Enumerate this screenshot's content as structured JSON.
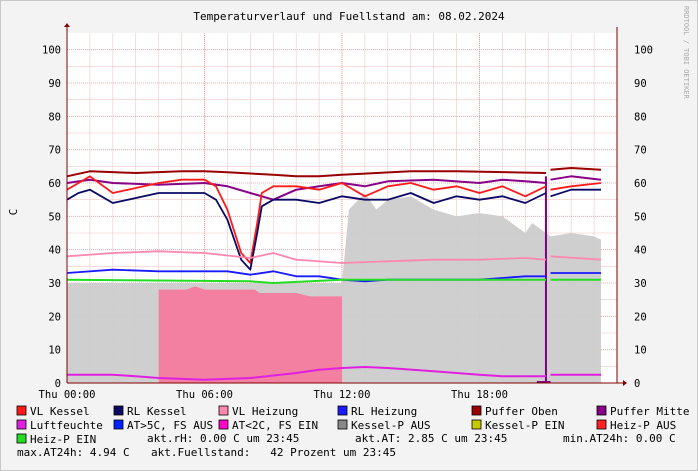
{
  "watermark": "RRDTOOL / TOBI OETIKER",
  "chart_data": {
    "type": "line",
    "title": "Temperaturverlauf und Fuellstand am: 08.02.2024",
    "ylabel": "C",
    "ylim": [
      0,
      105
    ],
    "yticks": [
      "0",
      "10",
      "20",
      "30",
      "40",
      "50",
      "60",
      "70",
      "80",
      "90",
      "100"
    ],
    "xlim": [
      0,
      24
    ],
    "xticks": [
      {
        "label": "Thu 00:00",
        "x": 0
      },
      {
        "label": "Thu 06:00",
        "x": 6
      },
      {
        "label": "Thu 12:00",
        "x": 12
      },
      {
        "label": "Thu 18:00",
        "x": 18
      }
    ],
    "grid": true,
    "colors": {
      "VL Kessel": "#ff1a1a",
      "RL Kessel": "#0a0a66",
      "VL Heizung": "#ff88b0",
      "RL Heizung": "#1a1aff",
      "Puffer Oben": "#990000",
      "Puffer Mitte": "#880088",
      "Luftfeuchte": "#e020e0",
      "AT>5C, FS AUS": "#0022ff",
      "AT<2C, FS EIN": "#ff00c8",
      "Kessel-P AUS": "#888888",
      "Kessel-P EIN": "#c8c800",
      "Heiz-P AUS": "#ff2222",
      "Heiz-P EIN": "#22dd22",
      "area_gray": "#cccccc",
      "area_pink": "#f47a9e",
      "gap_marker": "#800080"
    },
    "series": [
      {
        "name": "Puffer Oben",
        "x": [
          0,
          1,
          3,
          5,
          6,
          7,
          9,
          10,
          11,
          12,
          15,
          17,
          20.9,
          21.1,
          22,
          23.3
        ],
        "values": [
          62,
          63.5,
          63,
          63.5,
          63.5,
          63.2,
          62.5,
          62,
          62,
          62.5,
          63.5,
          63.5,
          63,
          64,
          64.5,
          64
        ]
      },
      {
        "name": "Puffer Mitte",
        "x": [
          0,
          1,
          2,
          4,
          6,
          7,
          8,
          9,
          10,
          11,
          12,
          13,
          14,
          16,
          18,
          19,
          20,
          20.9,
          21.1,
          22,
          23.3
        ],
        "values": [
          60,
          61,
          60,
          59.5,
          60,
          59,
          57,
          55,
          58,
          59,
          60,
          59,
          60.5,
          61,
          60,
          61,
          60.5,
          60,
          61,
          62,
          61
        ]
      },
      {
        "name": "VL Kessel",
        "x": [
          0,
          0.5,
          1,
          2,
          4,
          5,
          6,
          6.5,
          7,
          7.6,
          8,
          8.3,
          8.5,
          9,
          10,
          11,
          12,
          13,
          14,
          15,
          16,
          17,
          18,
          19,
          20,
          20.9,
          21.1,
          22,
          23.3
        ],
        "values": [
          58,
          60,
          62,
          57,
          60,
          61,
          61,
          59,
          52,
          39,
          36,
          48,
          57,
          59,
          59,
          58,
          60,
          56,
          59,
          60,
          58,
          59,
          57,
          59,
          56,
          59,
          58,
          59,
          60
        ]
      },
      {
        "name": "RL Kessel",
        "x": [
          0,
          0.5,
          1,
          2,
          4,
          5,
          6,
          6.5,
          7,
          7.6,
          8,
          8.3,
          8.5,
          9,
          10,
          11,
          12,
          13,
          14,
          15,
          16,
          17,
          18,
          19,
          20,
          20.9,
          21.1,
          22,
          23.3
        ],
        "values": [
          55,
          57,
          58,
          54,
          57,
          57,
          57,
          55,
          49,
          37,
          34,
          45,
          53,
          55,
          55,
          54,
          56,
          55,
          55,
          57,
          54,
          56,
          55,
          56,
          54,
          57,
          56,
          58,
          58
        ]
      },
      {
        "name": "VL Heizung",
        "x": [
          0,
          2,
          4,
          6,
          8,
          9,
          10,
          12,
          14,
          16,
          18,
          20,
          20.9,
          21.1,
          23.3
        ],
        "values": [
          38,
          39,
          39.5,
          39,
          37.5,
          39,
          37,
          36,
          36.5,
          37,
          37,
          37.5,
          37,
          38,
          37
        ]
      },
      {
        "name": "RL Heizung",
        "x": [
          0,
          2,
          4,
          6,
          7,
          8,
          9,
          10,
          11,
          12,
          13,
          14,
          16,
          18,
          20,
          20.9,
          21.1,
          23.3
        ],
        "values": [
          33,
          34,
          33.5,
          33.5,
          33.5,
          32.5,
          33.5,
          32,
          32,
          31,
          30.5,
          31,
          31,
          31,
          32,
          32,
          33,
          33
        ]
      },
      {
        "name": "Heiz-P EIN",
        "x": [
          0,
          8,
          9,
          12,
          16,
          20,
          20.9,
          21.1,
          23.3
        ],
        "values": [
          31,
          30.5,
          30,
          31,
          31,
          31,
          31,
          31,
          31
        ]
      },
      {
        "name": "Luftfeuchte",
        "x": [
          0,
          2,
          3,
          4,
          6,
          8,
          10,
          11,
          12,
          13,
          14,
          16,
          18,
          19,
          20,
          20.9,
          21.1,
          23.3
        ],
        "values": [
          2.5,
          2.5,
          2,
          1.5,
          1,
          1.5,
          3,
          4,
          4.5,
          4.8,
          4.5,
          3.5,
          2.5,
          2,
          2,
          2,
          2.5,
          2.5
        ]
      }
    ],
    "areas": [
      {
        "name": "Kessel-P AUS",
        "color": "area_gray",
        "x": [
          0,
          0.4,
          0.5,
          1,
          1.1,
          3.7,
          3.8,
          4.5,
          5.5,
          6,
          6.2,
          8.2,
          12,
          12.3,
          13,
          13.5,
          14,
          15,
          16,
          17,
          18,
          19,
          20,
          20.3,
          20.9,
          21.1,
          22,
          23,
          23.3
        ],
        "values": [
          30,
          30,
          30,
          30,
          30,
          30,
          30,
          30,
          30,
          30,
          30,
          30,
          30,
          52,
          57,
          52,
          55,
          56,
          52,
          50,
          51,
          50,
          45,
          48,
          45,
          44,
          45,
          44,
          43
        ]
      },
      {
        "name": "AT<2C, FS EIN",
        "color": "area_pink",
        "x": [
          4,
          4.7,
          5.2,
          5.6,
          6,
          6.2,
          8.2,
          8.4,
          10,
          10.6,
          12
        ],
        "values": [
          28,
          28,
          28,
          29,
          28,
          28,
          28,
          27,
          27,
          26,
          26
        ]
      }
    ],
    "legend": [
      {
        "label": "VL Kessel",
        "color": "VL Kessel"
      },
      {
        "label": "RL Kessel",
        "color": "RL Kessel"
      },
      {
        "label": "VL Heizung",
        "color": "VL Heizung"
      },
      {
        "label": "RL Heizung",
        "color": "RL Heizung"
      },
      {
        "label": "Puffer Oben",
        "color": "Puffer Oben"
      },
      {
        "label": "Puffer Mitte",
        "color": "Puffer Mitte"
      },
      {
        "label": "Luftfeuchte",
        "color": "Luftfeuchte"
      },
      {
        "label": "AT>5C, FS AUS",
        "color": "AT>5C, FS AUS"
      },
      {
        "label": "AT<2C, FS EIN",
        "color": "AT<2C, FS EIN"
      },
      {
        "label": "Kessel-P AUS",
        "color": "Kessel-P AUS"
      },
      {
        "label": "Kessel-P EIN",
        "color": "Kessel-P EIN"
      },
      {
        "label": "Heiz-P AUS",
        "color": "Heiz-P AUS"
      },
      {
        "label": "Heiz-P EIN",
        "color": "Heiz-P EIN"
      }
    ],
    "stats": [
      "akt.rH: 0.00 C um 23:45",
      "akt.AT: 2.85 C um 23:45",
      "min.AT24h: 0.00 C",
      "max.AT24h: 4.94 C",
      "akt.Fuellstand:   42 Prozent um 23:45"
    ]
  }
}
